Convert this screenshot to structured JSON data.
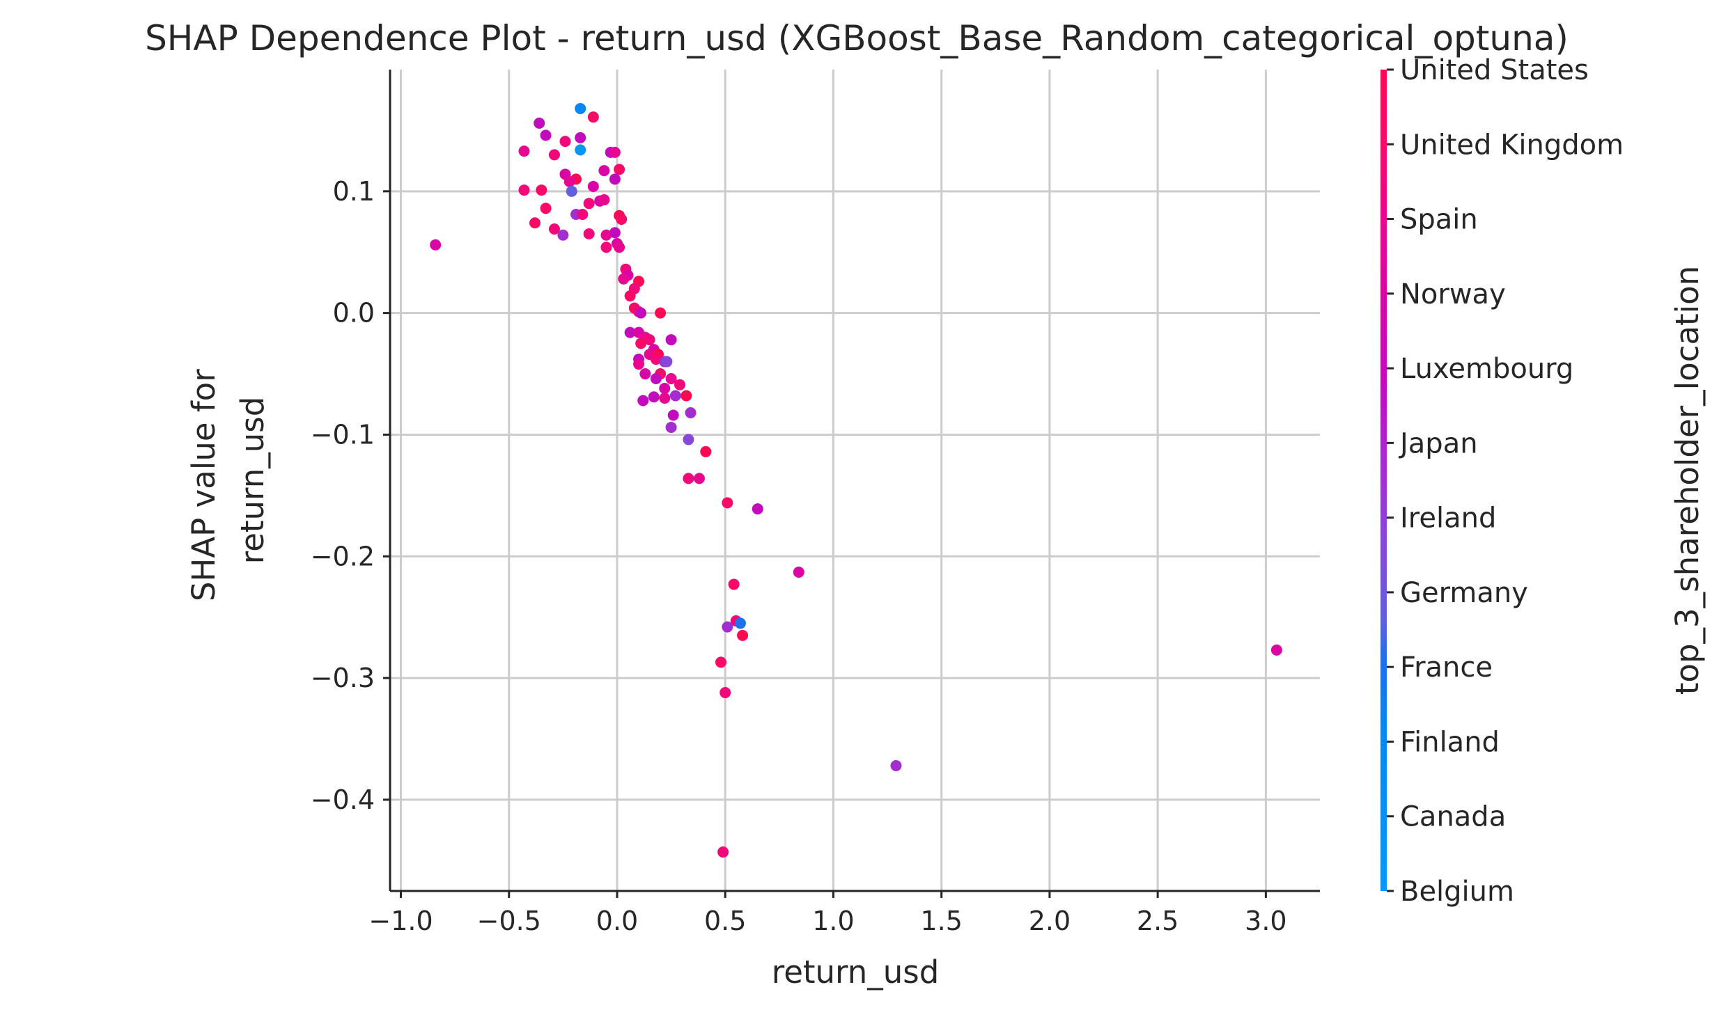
{
  "chart_data": {
    "type": "scatter",
    "title": "SHAP Dependence Plot - return_usd (XGBoost_Base_Random_categorical_optuna)",
    "xlabel": "return_usd",
    "ylabel_lines": [
      "SHAP value for",
      "return_usd"
    ],
    "xlim": [
      -1.05,
      3.25
    ],
    "ylim": [
      -0.475,
      0.2
    ],
    "x_ticks": [
      -1.0,
      -0.5,
      0.0,
      0.5,
      1.0,
      1.5,
      2.0,
      2.5,
      3.0
    ],
    "x_tick_labels": [
      "−1.0",
      "−0.5",
      "0.0",
      "0.5",
      "1.0",
      "1.5",
      "2.0",
      "2.5",
      "3.0"
    ],
    "y_ticks": [
      0.1,
      0.0,
      -0.1,
      -0.2,
      -0.3,
      -0.4
    ],
    "y_tick_labels": [
      "0.1",
      "0.0",
      "−0.1",
      "−0.2",
      "−0.3",
      "−0.4"
    ],
    "grid": true,
    "colorbar": {
      "label": "top_3_shareholder_location",
      "categories": [
        "United States",
        "United Kingdom",
        "Spain",
        "Norway",
        "Luxembourg",
        "Japan",
        "Ireland",
        "Germany",
        "France",
        "Finland",
        "Canada",
        "Belgium"
      ],
      "colors": [
        "#ff0a52",
        "#f90a66",
        "#f1097a",
        "#e8088f",
        "#d906a5",
        "#c20bbd",
        "#a32ed0",
        "#8748da",
        "#6060e0",
        "#1f70ec",
        "#0a86f2",
        "#0a96f6"
      ]
    },
    "points": [
      {
        "x": -0.84,
        "y": 0.056,
        "c": 4
      },
      {
        "x": -0.17,
        "y": 0.168,
        "c": 10
      },
      {
        "x": -0.11,
        "y": 0.161,
        "c": 1
      },
      {
        "x": -0.36,
        "y": 0.156,
        "c": 5
      },
      {
        "x": -0.33,
        "y": 0.146,
        "c": 5
      },
      {
        "x": -0.17,
        "y": 0.144,
        "c": 5
      },
      {
        "x": -0.24,
        "y": 0.141,
        "c": 2
      },
      {
        "x": -0.17,
        "y": 0.134,
        "c": 11
      },
      {
        "x": -0.43,
        "y": 0.133,
        "c": 3
      },
      {
        "x": -0.03,
        "y": 0.132,
        "c": 5
      },
      {
        "x": -0.01,
        "y": 0.132,
        "c": 3
      },
      {
        "x": -0.29,
        "y": 0.13,
        "c": 2
      },
      {
        "x": 0.01,
        "y": 0.118,
        "c": 1
      },
      {
        "x": -0.06,
        "y": 0.117,
        "c": 4
      },
      {
        "x": -0.24,
        "y": 0.114,
        "c": 4
      },
      {
        "x": -0.19,
        "y": 0.11,
        "c": 0
      },
      {
        "x": -0.01,
        "y": 0.11,
        "c": 5
      },
      {
        "x": -0.22,
        "y": 0.108,
        "c": 3
      },
      {
        "x": -0.11,
        "y": 0.104,
        "c": 4
      },
      {
        "x": -0.43,
        "y": 0.101,
        "c": 2
      },
      {
        "x": -0.35,
        "y": 0.101,
        "c": 1
      },
      {
        "x": -0.21,
        "y": 0.1,
        "c": 8
      },
      {
        "x": -0.08,
        "y": 0.092,
        "c": 4
      },
      {
        "x": -0.06,
        "y": 0.093,
        "c": 3
      },
      {
        "x": -0.13,
        "y": 0.09,
        "c": 2
      },
      {
        "x": -0.33,
        "y": 0.086,
        "c": 1
      },
      {
        "x": -0.19,
        "y": 0.081,
        "c": 6
      },
      {
        "x": -0.16,
        "y": 0.081,
        "c": 2
      },
      {
        "x": 0.01,
        "y": 0.08,
        "c": 0
      },
      {
        "x": 0.02,
        "y": 0.077,
        "c": 1
      },
      {
        "x": -0.38,
        "y": 0.074,
        "c": 1
      },
      {
        "x": -0.29,
        "y": 0.069,
        "c": 2
      },
      {
        "x": -0.05,
        "y": 0.064,
        "c": 3
      },
      {
        "x": -0.13,
        "y": 0.065,
        "c": 2
      },
      {
        "x": -0.25,
        "y": 0.064,
        "c": 6
      },
      {
        "x": -0.01,
        "y": 0.066,
        "c": 5
      },
      {
        "x": 0.0,
        "y": 0.057,
        "c": 4
      },
      {
        "x": -0.05,
        "y": 0.054,
        "c": 2
      },
      {
        "x": 0.01,
        "y": 0.054,
        "c": 3
      },
      {
        "x": 0.04,
        "y": 0.036,
        "c": 2
      },
      {
        "x": 0.05,
        "y": 0.031,
        "c": 4
      },
      {
        "x": 0.03,
        "y": 0.028,
        "c": 3
      },
      {
        "x": 0.1,
        "y": 0.026,
        "c": 0
      },
      {
        "x": 0.08,
        "y": 0.02,
        "c": 2
      },
      {
        "x": 0.06,
        "y": 0.014,
        "c": 1
      },
      {
        "x": 0.08,
        "y": 0.004,
        "c": 1
      },
      {
        "x": 0.1,
        "y": 0.001,
        "c": 2
      },
      {
        "x": 0.11,
        "y": 0.0,
        "c": 5
      },
      {
        "x": 0.2,
        "y": 0.0,
        "c": 0
      },
      {
        "x": 0.06,
        "y": -0.016,
        "c": 5
      },
      {
        "x": 0.1,
        "y": -0.016,
        "c": 4
      },
      {
        "x": 0.13,
        "y": -0.02,
        "c": 3
      },
      {
        "x": 0.15,
        "y": -0.022,
        "c": 2
      },
      {
        "x": 0.11,
        "y": -0.025,
        "c": 1
      },
      {
        "x": 0.25,
        "y": -0.022,
        "c": 5
      },
      {
        "x": 0.17,
        "y": -0.03,
        "c": 4
      },
      {
        "x": 0.15,
        "y": -0.034,
        "c": 3
      },
      {
        "x": 0.19,
        "y": -0.034,
        "c": 0
      },
      {
        "x": 0.18,
        "y": -0.038,
        "c": 2
      },
      {
        "x": 0.1,
        "y": -0.038,
        "c": 5
      },
      {
        "x": 0.1,
        "y": -0.042,
        "c": 3
      },
      {
        "x": 0.22,
        "y": -0.04,
        "c": 6
      },
      {
        "x": 0.23,
        "y": -0.04,
        "c": 7
      },
      {
        "x": 0.13,
        "y": -0.05,
        "c": 4
      },
      {
        "x": 0.2,
        "y": -0.05,
        "c": 1
      },
      {
        "x": 0.18,
        "y": -0.054,
        "c": 5
      },
      {
        "x": 0.25,
        "y": -0.054,
        "c": 3
      },
      {
        "x": 0.29,
        "y": -0.059,
        "c": 2
      },
      {
        "x": 0.22,
        "y": -0.062,
        "c": 4
      },
      {
        "x": 0.32,
        "y": -0.068,
        "c": 0
      },
      {
        "x": 0.27,
        "y": -0.068,
        "c": 6
      },
      {
        "x": 0.17,
        "y": -0.069,
        "c": 5
      },
      {
        "x": 0.22,
        "y": -0.07,
        "c": 3
      },
      {
        "x": 0.12,
        "y": -0.072,
        "c": 5
      },
      {
        "x": 0.34,
        "y": -0.082,
        "c": 6
      },
      {
        "x": 0.26,
        "y": -0.084,
        "c": 5
      },
      {
        "x": 0.25,
        "y": -0.094,
        "c": 6
      },
      {
        "x": 0.33,
        "y": -0.104,
        "c": 7
      },
      {
        "x": 0.41,
        "y": -0.114,
        "c": 0
      },
      {
        "x": 0.33,
        "y": -0.136,
        "c": 2
      },
      {
        "x": 0.38,
        "y": -0.136,
        "c": 3
      },
      {
        "x": 0.51,
        "y": -0.156,
        "c": 1
      },
      {
        "x": 0.65,
        "y": -0.161,
        "c": 5
      },
      {
        "x": 0.84,
        "y": -0.213,
        "c": 4
      },
      {
        "x": 0.54,
        "y": -0.223,
        "c": 1
      },
      {
        "x": 0.55,
        "y": -0.253,
        "c": 2
      },
      {
        "x": 0.51,
        "y": -0.258,
        "c": 6
      },
      {
        "x": 0.57,
        "y": -0.255,
        "c": 9
      },
      {
        "x": 0.58,
        "y": -0.265,
        "c": 0
      },
      {
        "x": 0.48,
        "y": -0.287,
        "c": 1
      },
      {
        "x": 0.5,
        "y": -0.312,
        "c": 2
      },
      {
        "x": 1.29,
        "y": -0.372,
        "c": 6
      },
      {
        "x": 3.05,
        "y": -0.277,
        "c": 4
      },
      {
        "x": 0.49,
        "y": -0.443,
        "c": 2
      }
    ]
  }
}
